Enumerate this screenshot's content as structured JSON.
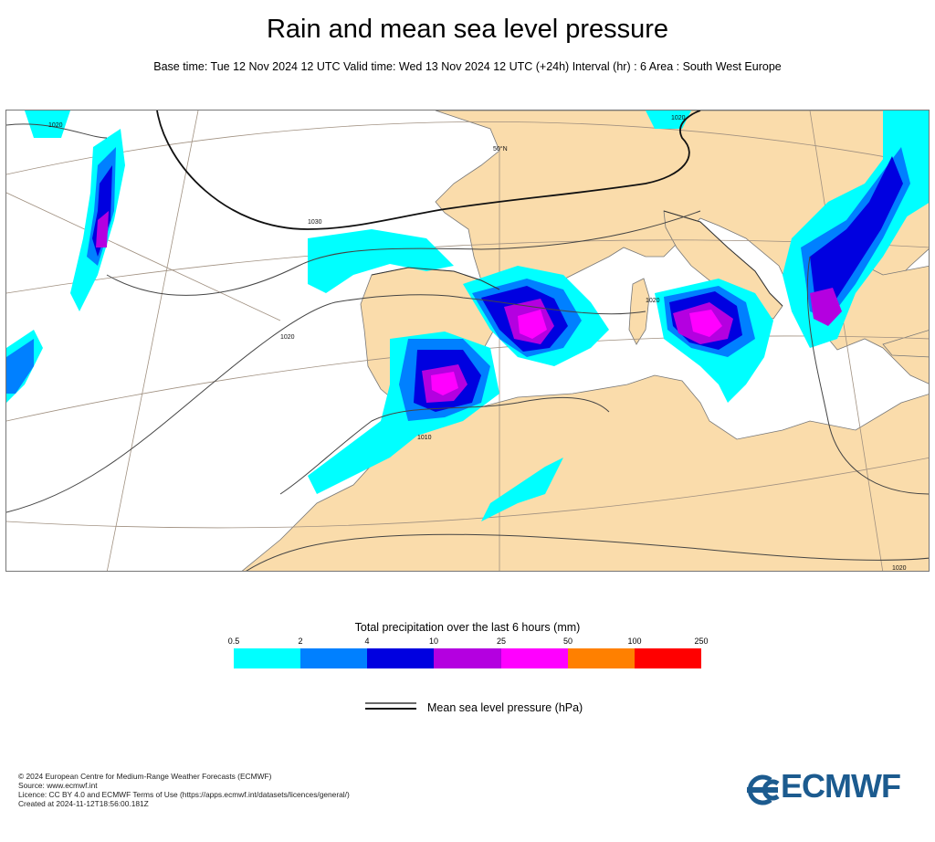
{
  "header": {
    "title": "Rain and mean sea level pressure",
    "subtitle": "Base time: Tue 12 Nov 2024 12 UTC Valid time: Wed 13 Nov 2024 12 UTC (+24h) Interval (hr) : 6 Area : South West Europe"
  },
  "map": {
    "land_color": "#fadcab",
    "sea_color": "#ffffff",
    "isobar_labels": [
      "1020",
      "1030",
      "1020",
      "1010",
      "1020",
      "1020",
      "1020"
    ],
    "graticule_label": "50°N"
  },
  "legend": {
    "title": "Total precipitation over the last 6 hours (mm)",
    "ticks": [
      "0.5",
      "2",
      "4",
      "10",
      "25",
      "50",
      "100",
      "250"
    ],
    "colors": [
      "#00ffff",
      "#0080ff",
      "#0000e0",
      "#b400e0",
      "#ff00ff",
      "#ff8000",
      "#ff0000"
    ],
    "mslp_label": "Mean sea level pressure (hPa)"
  },
  "footer": {
    "lines": [
      "© 2024 European Centre for Medium-Range Weather Forecasts (ECMWF)",
      "Source: www.ecmwf.int",
      "Licence: CC BY 4.0 and ECMWF Terms of Use (https://apps.ecmwf.int/datasets/licences/general/)",
      "Created at 2024-11-12T18:56:00.181Z"
    ],
    "logo_text": "ECMWF",
    "logo_color": "#1c5b8f"
  }
}
